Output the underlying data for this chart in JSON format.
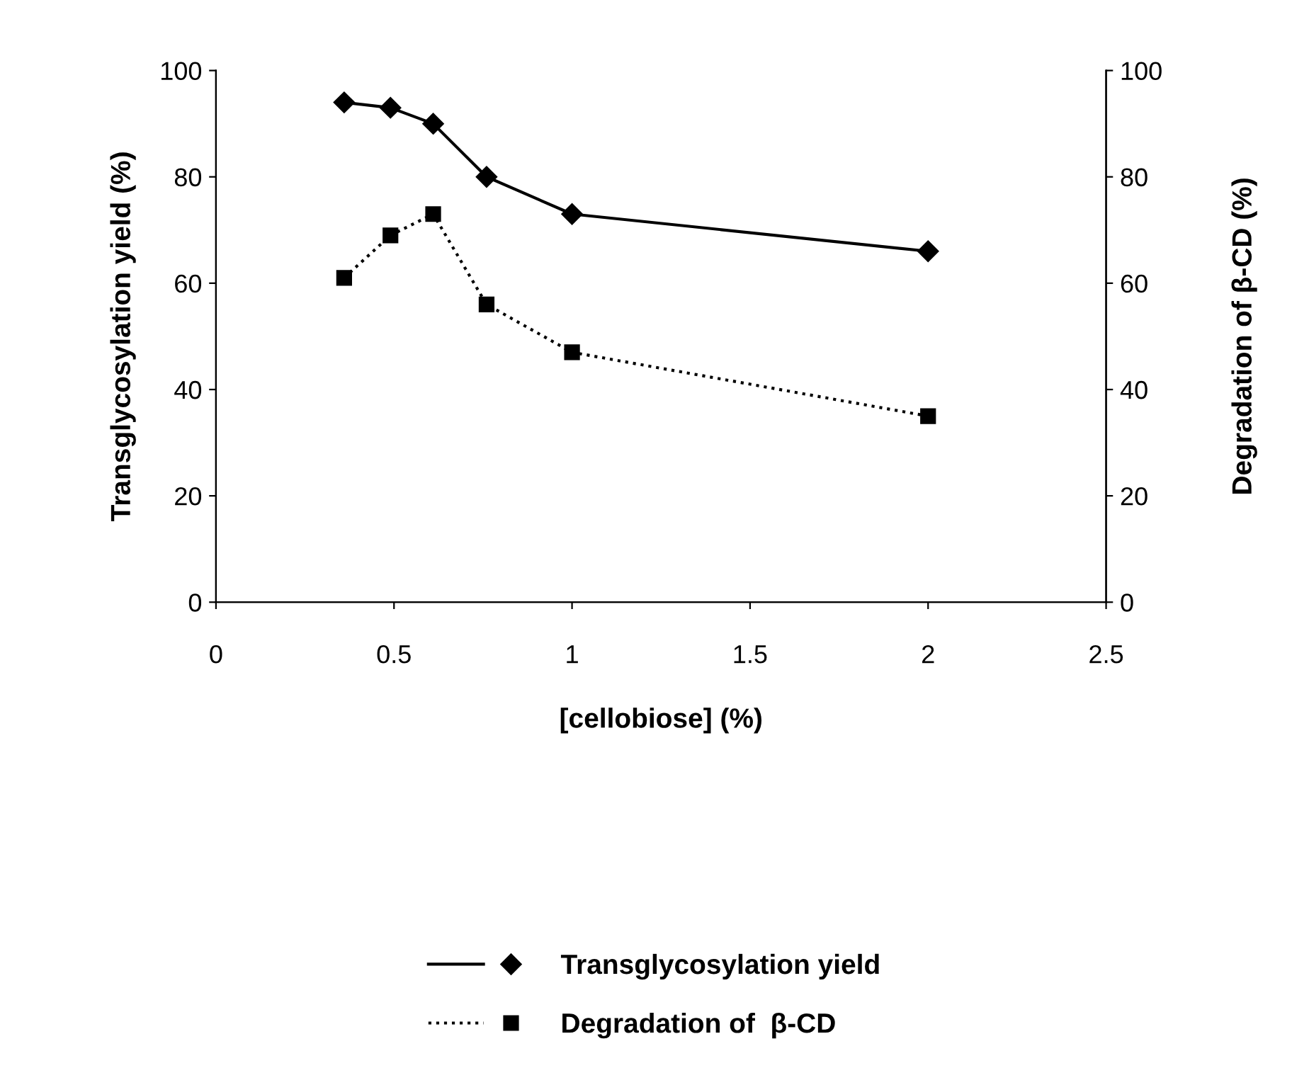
{
  "chart_data": {
    "type": "line",
    "xlabel": "[cellobiose] (%)",
    "ylabel": "Transglycosylation yield (%)",
    "y2label": "Degradation of β-CD (%)",
    "xlim": [
      0,
      2.5
    ],
    "xticks": [
      0,
      0.5,
      1,
      1.5,
      2,
      2.5
    ],
    "ylim": [
      0,
      100
    ],
    "yticks": [
      0,
      20,
      40,
      60,
      80,
      100
    ],
    "y2lim": [
      0,
      100
    ],
    "y2ticks": [
      0,
      20,
      40,
      60,
      80,
      100
    ],
    "x": [
      0.36,
      0.49,
      0.61,
      0.76,
      1.0,
      2.0
    ],
    "series": [
      {
        "name": "Transglycosylation yield",
        "color": "#000000",
        "values": [
          94,
          93,
          90,
          80,
          73,
          66
        ],
        "marker": "diamond",
        "line_style": "solid"
      },
      {
        "name": "Degradation of  β-CD",
        "color": "#000000",
        "values": [
          61,
          69,
          73,
          56,
          47,
          35
        ],
        "marker": "square",
        "line_style": "dotted",
        "axis": "y2"
      }
    ],
    "grid": false,
    "legend": "bottom"
  }
}
